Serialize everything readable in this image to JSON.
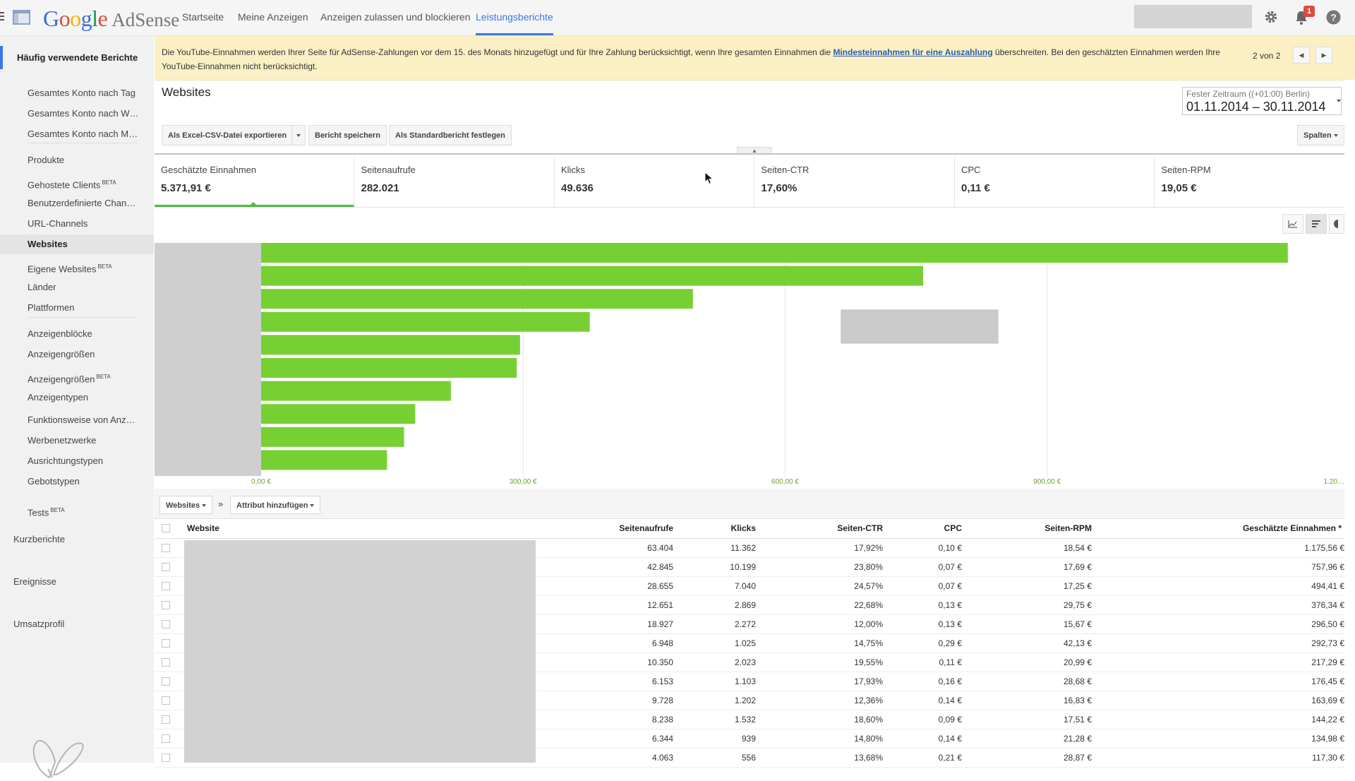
{
  "brand": {
    "google": "Google",
    "product": "AdSense"
  },
  "nav": {
    "tabs": [
      {
        "label": "Startseite"
      },
      {
        "label": "Meine Anzeigen"
      },
      {
        "label": "Anzeigen zulassen und blockieren"
      },
      {
        "label": "Leistungsberichte"
      }
    ],
    "active_tab": "Leistungsberichte",
    "notification_count": "1"
  },
  "sidebar": {
    "heading": "Häufig verwendete Berichte",
    "items": [
      {
        "label": "Gesamtes Konto nach Tag"
      },
      {
        "label": "Gesamtes Konto nach W…"
      },
      {
        "label": "Gesamtes Konto nach M…"
      },
      {
        "label": "Produkte"
      },
      {
        "label": "Gehostete Clients",
        "badge": "BETA"
      },
      {
        "label": "Benutzerdefinierte Chan…"
      },
      {
        "label": "URL-Channels"
      },
      {
        "label": "Websites",
        "active": true
      },
      {
        "label": "Eigene Websites",
        "badge": "BETA"
      },
      {
        "label": "Länder"
      },
      {
        "label": "Plattformen"
      },
      {
        "label": "Anzeigenblöcke"
      },
      {
        "label": "Anzeigengrößen"
      },
      {
        "label": "Anzeigengrößen",
        "badge": "BETA"
      },
      {
        "label": "Anzeigentypen"
      },
      {
        "label": "Funktionsweise von Anz…"
      },
      {
        "label": "Werbenetzwerke"
      },
      {
        "label": "Ausrichtungstypen"
      },
      {
        "label": "Gebotstypen"
      },
      {
        "label": "Tests",
        "badge": "BETA"
      }
    ],
    "sections": [
      {
        "label": "Kurzberichte"
      },
      {
        "label": "Ereignisse"
      },
      {
        "label": "Umsatzprofil"
      }
    ]
  },
  "notice": {
    "text_before": "Die YouTube-Einnahmen werden Ihrer Seite für AdSense-Zahlungen vor dem 15. des Monats hinzugefügt und für Ihre Zahlung berücksichtigt, wenn Ihre gesamten Einnahmen die ",
    "link": "Mindesteinnahmen für eine Auszahlung",
    "text_after": " überschreiten. Bei den geschätzten Einnahmen werden Ihre YouTube-Einnahmen nicht berücksichtigt.",
    "pager": "2 von 2"
  },
  "report": {
    "title": "Websites",
    "date_label": "Fester Zeitraum ((+01:00) Berlin)",
    "date_range": "01.11.2014 – 30.11.2014",
    "buttons": {
      "export": "Als Excel-CSV-Datei exportieren",
      "save": "Bericht speichern",
      "set_default": "Als Standardbericht festlegen",
      "columns": "Spalten"
    }
  },
  "metrics": [
    {
      "label": "Geschätzte Einnahmen",
      "value": "5.371,91 €",
      "active": true
    },
    {
      "label": "Seitenaufrufe",
      "value": "282.021"
    },
    {
      "label": "Klicks",
      "value": "49.636"
    },
    {
      "label": "Seiten-CTR",
      "value": "17,60%"
    },
    {
      "label": "CPC",
      "value": "0,11 €"
    },
    {
      "label": "Seiten-RPM",
      "value": "19,05 €"
    }
  ],
  "chart_data": {
    "type": "bar",
    "orientation": "horizontal",
    "values": [
      1175.56,
      757.96,
      494.41,
      376.34,
      296.5,
      292.73,
      217.29,
      176.45,
      163.69,
      144.22
    ],
    "xlim": [
      0,
      1200
    ],
    "x_ticks": [
      "0,00 €",
      "300,00 €",
      "600,00 €",
      "900,00 €",
      "1.20…"
    ],
    "grid": true,
    "bar_color": "#77d033"
  },
  "table_toolbar": {
    "dimension": "Websites",
    "separator": "»",
    "add_attribute": "Attribut hinzufügen"
  },
  "table": {
    "columns": [
      "Website",
      "Seitenaufrufe",
      "Klicks",
      "Seiten-CTR",
      "CPC",
      "Seiten-RPM",
      "Geschätzte Einnahmen *"
    ],
    "rows": [
      [
        "63.404",
        "11.362",
        "17,92%",
        "0,10 €",
        "18,54 €",
        "1.175,56 €"
      ],
      [
        "42.845",
        "10.199",
        "23,80%",
        "0,07 €",
        "17,69 €",
        "757,96 €"
      ],
      [
        "28.655",
        "7.040",
        "24,57%",
        "0,07 €",
        "17,25 €",
        "494,41 €"
      ],
      [
        "12.651",
        "2.869",
        "22,68%",
        "0,13 €",
        "29,75 €",
        "376,34 €"
      ],
      [
        "18.927",
        "2.272",
        "12,00%",
        "0,13 €",
        "15,67 €",
        "296,50 €"
      ],
      [
        "6.948",
        "1.025",
        "14,75%",
        "0,29 €",
        "42,13 €",
        "292,73 €"
      ],
      [
        "10.350",
        "2.023",
        "19,55%",
        "0,11 €",
        "20,99 €",
        "217,29 €"
      ],
      [
        "6.153",
        "1.103",
        "17,93%",
        "0,16 €",
        "28,68 €",
        "176,45 €"
      ],
      [
        "9.728",
        "1.202",
        "12,36%",
        "0,14 €",
        "16,83 €",
        "163,69 €"
      ],
      [
        "8.238",
        "1.532",
        "18,60%",
        "0,09 €",
        "17,51 €",
        "144,22 €"
      ],
      [
        "6.344",
        "939",
        "14,80%",
        "0,14 €",
        "21,28 €",
        "134,98 €"
      ],
      [
        "4.063",
        "556",
        "13,68%",
        "0,21 €",
        "28,87 €",
        "117,30 €"
      ]
    ]
  },
  "colors": {
    "accent": "#3b78e7",
    "bar": "#77d033",
    "notice_bg": "#fbf0c4",
    "badge": "#dd4b39"
  }
}
